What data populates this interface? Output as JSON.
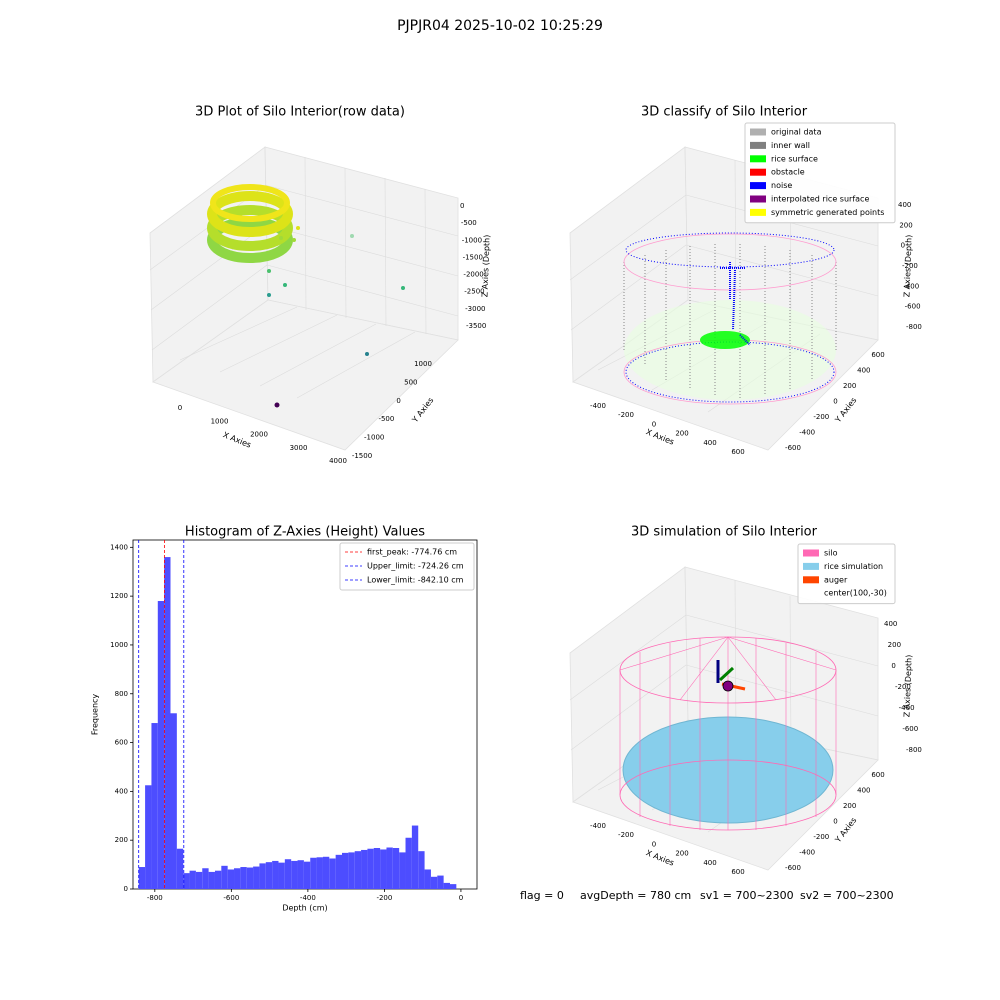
{
  "suptitle": "PJPJR04 2025-10-02 10:25:29",
  "footer": [
    "flag = 0",
    "avgDepth = 780 cm",
    "sv1 = 700~2300",
    "sv2 = 700~2300"
  ],
  "chart_data": [
    {
      "type": "scatter3d",
      "title": "3D Plot of Silo Interior(row data)",
      "xlabel": "X Axies",
      "ylabel": "Y Axies",
      "zlabel": "Z Axies (Depth)",
      "xticks": [
        0,
        1000,
        2000,
        3000,
        4000
      ],
      "yticks": [
        -1500,
        -1000,
        -500,
        0,
        500,
        1000
      ],
      "zticks": [
        0,
        -500,
        -1000,
        -1500,
        -2000,
        -2500,
        -3000,
        -3500
      ]
    },
    {
      "type": "scatter3d",
      "title": "3D classify of Silo Interior",
      "xlabel": "X Axies",
      "ylabel": "Y Axies",
      "zlabel": "Z Axies (Depth)",
      "xticks": [
        -400,
        -200,
        0,
        200,
        400,
        600
      ],
      "yticks": [
        -600,
        -400,
        -200,
        0,
        200,
        400,
        600
      ],
      "zticks": [
        400,
        200,
        0,
        -200,
        -400,
        -600,
        -800
      ],
      "legend": "upper right",
      "series": [
        {
          "name": "original data",
          "color": "#b0b0b0"
        },
        {
          "name": "inner wall",
          "color": "#808080"
        },
        {
          "name": "rice surface",
          "color": "#00ff00"
        },
        {
          "name": "obstacle",
          "color": "#ff0000"
        },
        {
          "name": "noise",
          "color": "#0000ff"
        },
        {
          "name": "interpolated rice surface",
          "color": "#800080"
        },
        {
          "name": "symmetric generated points",
          "color": "#ffff00"
        }
      ]
    },
    {
      "type": "histogram",
      "title": "Histogram of Z-Axies (Height) Values",
      "xlabel": "Depth (cm)",
      "ylabel": "Frequency",
      "color": "#4d4dff",
      "bins": [
        -842,
        -825.4,
        -808.8,
        -792.2,
        -775.6,
        -759,
        -742.4,
        -725.8,
        -709.2,
        -692.6,
        -676,
        -659.4,
        -642.8,
        -626.2,
        -609.6,
        -593,
        -576.4,
        -559.8,
        -543.2,
        -526.6,
        -510,
        -493.4,
        -476.8,
        -460.2,
        -443.6,
        -427,
        -410.4,
        -393.8,
        -377.2,
        -360.6,
        -344,
        -327.4,
        -310.8,
        -294.2,
        -277.6,
        -261,
        -244.4,
        -227.8,
        -211.2,
        -194.6,
        -178,
        -161.4,
        -144.8,
        -128.2,
        -111.6,
        -95,
        -78.4,
        -61.8,
        -45.2,
        -28.6,
        -12
      ],
      "values": [
        90,
        425,
        680,
        1180,
        1360,
        720,
        165,
        65,
        75,
        70,
        85,
        70,
        75,
        95,
        80,
        85,
        90,
        88,
        92,
        105,
        110,
        115,
        108,
        122,
        115,
        118,
        112,
        128,
        130,
        132,
        125,
        140,
        148,
        150,
        155,
        160,
        165,
        168,
        162,
        170,
        168,
        150,
        210,
        260,
        155,
        80,
        50,
        55,
        25,
        20
      ],
      "xlim": [
        -857,
        42
      ],
      "ylim": [
        0,
        1430
      ],
      "xticks": [
        -800,
        -600,
        -400,
        -200,
        0
      ],
      "yticks": [
        0,
        200,
        400,
        600,
        800,
        1000,
        1200,
        1400
      ],
      "legend": "upper right",
      "lines": [
        {
          "label": "first_peak: -774.76 cm",
          "value": -774.76,
          "color": "#ff0000"
        },
        {
          "label": "Upper_limit: -724.26 cm",
          "value": -724.26,
          "color": "#0000ff"
        },
        {
          "label": "Lower_limit: -842.10 cm",
          "value": -842.1,
          "color": "#0000ff"
        }
      ]
    },
    {
      "type": "surface3d",
      "title": "3D simulation of Silo Interior",
      "xlabel": "X Axies",
      "ylabel": "Y Axies",
      "zlabel": "Z Axies (Depth)",
      "xticks": [
        -400,
        -200,
        0,
        200,
        400,
        600
      ],
      "yticks": [
        -600,
        -400,
        -200,
        0,
        200,
        400,
        600
      ],
      "zticks": [
        400,
        200,
        0,
        -200,
        -400,
        -600,
        -800
      ],
      "legend": "upper right",
      "series": [
        {
          "name": "silo",
          "color": "#ff69b4"
        },
        {
          "name": "rice simulation",
          "color": "#87ceeb"
        },
        {
          "name": "auger",
          "color": "#ff4500"
        },
        {
          "name": "center(100,-30)",
          "color": "#ffffff"
        }
      ]
    }
  ]
}
